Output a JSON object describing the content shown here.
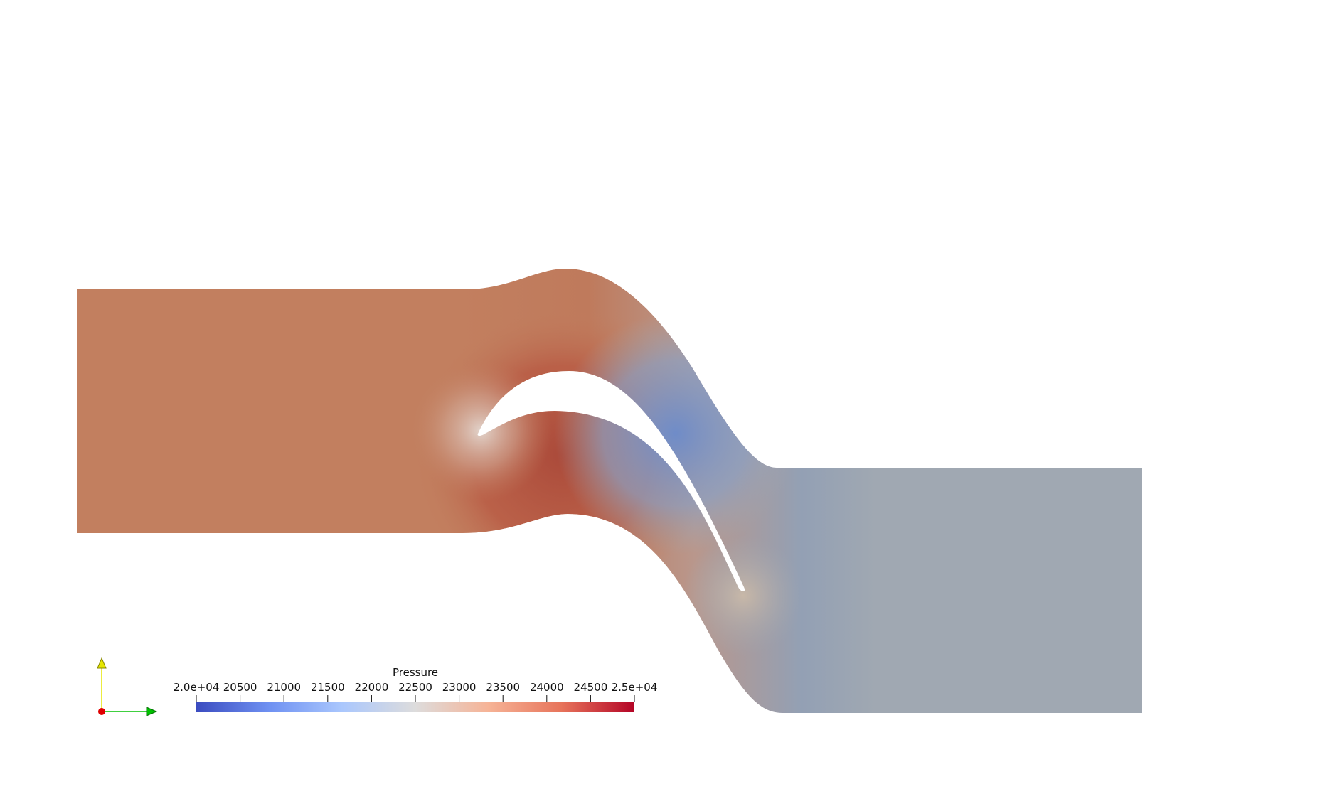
{
  "render_view": {
    "background": "#ffffff",
    "field": "Pressure"
  },
  "color_legend": {
    "title": "Pressure",
    "range": [
      20000,
      25000
    ],
    "min_label": "2.0e+04",
    "max_label": "2.5e+04",
    "ticks": [
      {
        "value": 20500,
        "label": "20500"
      },
      {
        "value": 21000,
        "label": "21000"
      },
      {
        "value": 21500,
        "label": "21500"
      },
      {
        "value": 22000,
        "label": "22000"
      },
      {
        "value": 22500,
        "label": "22500"
      },
      {
        "value": 23000,
        "label": "23000"
      },
      {
        "value": 23500,
        "label": "23500"
      },
      {
        "value": 24000,
        "label": "24000"
      },
      {
        "value": 24500,
        "label": "24500"
      }
    ],
    "colormap": [
      "#3b4cc0",
      "#6f91f2",
      "#aac7fd",
      "#dddcdc",
      "#f6b396",
      "#e7745b",
      "#b40426"
    ]
  },
  "axes_triad": {
    "x_color": "#00c000",
    "y_color": "#e6e600",
    "z_color": "#e00000"
  },
  "field_colors": {
    "inlet": "#c27f5f",
    "pressure_side_peak": "#ab4a3a",
    "suction_side_low": "#7d94c2",
    "outlet": "#a0a8b2",
    "leading_edge": "#e0d0c8"
  }
}
